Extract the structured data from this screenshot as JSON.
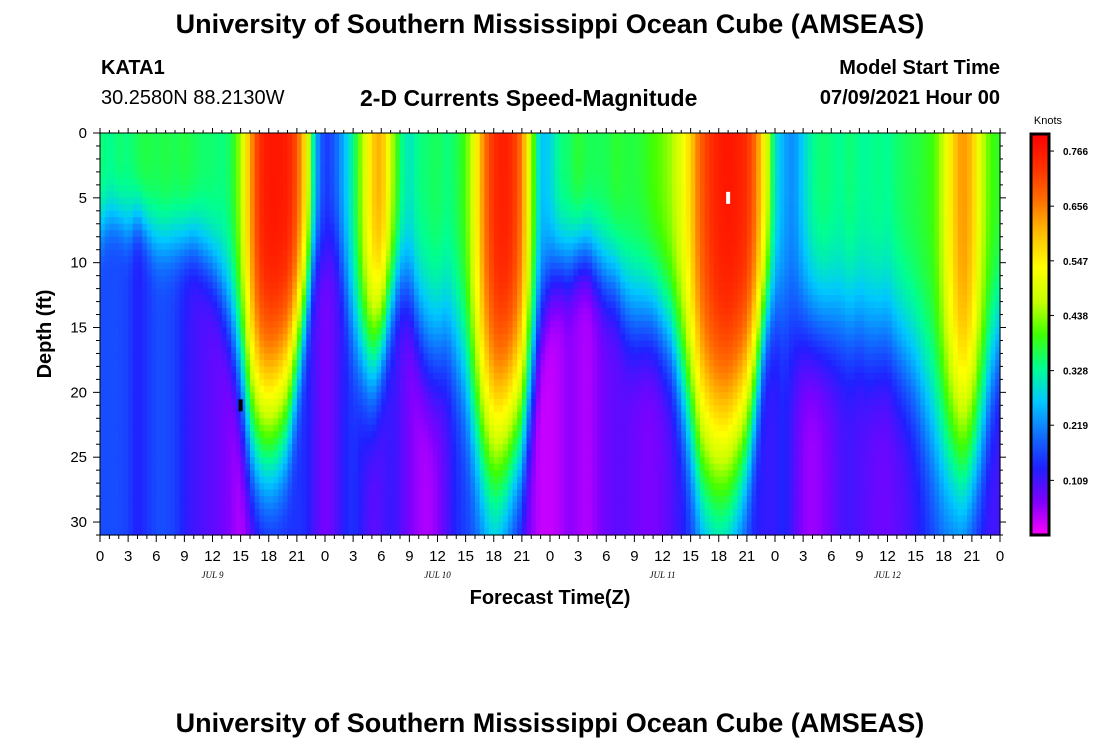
{
  "header": {
    "title": "University of Southern Mississippi Ocean Cube (AMSEAS)",
    "station_id": "KATA1",
    "station_coords": "30.2580N  88.2130W",
    "model_start_label": "Model Start Time",
    "model_start_value": "07/09/2021 Hour 00"
  },
  "footer": {
    "title": "University of Southern Mississippi Ocean Cube (AMSEAS)"
  },
  "colors": {
    "palette": [
      "#ff00ff",
      "#8000ff",
      "#2020ff",
      "#1070ff",
      "#00c8ff",
      "#00ff90",
      "#40ff00",
      "#c8ff00",
      "#ffff00",
      "#ffc000",
      "#ff7000",
      "#ff3000",
      "#ff0000"
    ]
  },
  "chart_data": {
    "type": "heatmap",
    "title": "2-D Currents Speed-Magnitude",
    "xlabel": "Forecast Time(Z)",
    "ylabel": "Depth (ft)",
    "colorbar_unit": "Knots",
    "colorbar_ticks": [
      "0.766",
      "0.656",
      "0.547",
      "0.438",
      "0.328",
      "0.219",
      "0.109"
    ],
    "colorbar_values": [
      0.766,
      0.656,
      0.547,
      0.438,
      0.328,
      0.219,
      0.109
    ],
    "value_range": [
      0.0,
      0.8
    ],
    "x_range_hours": [
      0,
      96
    ],
    "x_tick_labels": [
      "0",
      "3",
      "6",
      "9",
      "12",
      "15",
      "18",
      "21",
      "0",
      "3",
      "6",
      "9",
      "12",
      "15",
      "18",
      "21",
      "0",
      "3",
      "6",
      "9",
      "12",
      "15",
      "18",
      "21",
      "0",
      "3",
      "6",
      "9",
      "12",
      "15",
      "18",
      "21",
      "0"
    ],
    "date_labels": [
      {
        "label": "JUL 9",
        "hour": 12
      },
      {
        "label": "JUL 10",
        "hour": 36
      },
      {
        "label": "JUL 11",
        "hour": 60
      },
      {
        "label": "JUL 12",
        "hour": 84
      }
    ],
    "y_range_ft": [
      0,
      31
    ],
    "y_tick_values": [
      0,
      5,
      10,
      15,
      20,
      25,
      30
    ],
    "y_tick_labels": [
      "0",
      "5",
      "10",
      "15",
      "20",
      "25",
      "30"
    ],
    "markers": [
      {
        "name": "maximum",
        "hour": 67,
        "depth_ft": 5,
        "color": "#ffffff"
      },
      {
        "name": "minimum",
        "hour": 15,
        "depth_ft": 21,
        "color": "#000000"
      }
    ],
    "surface_profile_knots_by_hour": [
      0.35,
      0.33,
      0.35,
      0.34,
      0.36,
      0.37,
      0.36,
      0.37,
      0.36,
      0.37,
      0.36,
      0.35,
      0.35,
      0.34,
      0.36,
      0.45,
      0.62,
      0.74,
      0.77,
      0.77,
      0.76,
      0.7,
      0.54,
      0.25,
      0.15,
      0.18,
      0.25,
      0.33,
      0.46,
      0.58,
      0.62,
      0.48,
      0.35,
      0.3,
      0.34,
      0.35,
      0.36,
      0.34,
      0.36,
      0.4,
      0.52,
      0.66,
      0.74,
      0.76,
      0.74,
      0.66,
      0.45,
      0.26,
      0.28,
      0.34,
      0.35,
      0.38,
      0.36,
      0.36,
      0.36,
      0.38,
      0.37,
      0.37,
      0.38,
      0.4,
      0.42,
      0.45,
      0.5,
      0.58,
      0.68,
      0.73,
      0.76,
      0.77,
      0.76,
      0.74,
      0.66,
      0.52,
      0.3,
      0.24,
      0.22,
      0.28,
      0.33,
      0.35,
      0.34,
      0.33,
      0.35,
      0.33,
      0.33,
      0.34,
      0.33,
      0.35,
      0.36,
      0.37,
      0.38,
      0.4,
      0.48,
      0.58,
      0.64,
      0.6,
      0.48,
      0.4,
      0.38
    ],
    "mixed_layer_depth_ft_by_hour": [
      8,
      7,
      7,
      8,
      7,
      8,
      9,
      9,
      9,
      9,
      9,
      10,
      11,
      13,
      16,
      20,
      24,
      25,
      25,
      24,
      22,
      18,
      14,
      10,
      10,
      9,
      12,
      16,
      18,
      19,
      17,
      14,
      12,
      13,
      16,
      18,
      18,
      17,
      18,
      20,
      23,
      25,
      26,
      26,
      25,
      24,
      20,
      15,
      12,
      11,
      11,
      10,
      10,
      11,
      12,
      12,
      14,
      15,
      15,
      15,
      16,
      17,
      20,
      23,
      26,
      27,
      27,
      27,
      26,
      24,
      20,
      15,
      14,
      15,
      16,
      16,
      16,
      16,
      16,
      16,
      16,
      16,
      17,
      17,
      17,
      18,
      19,
      20,
      22,
      24,
      25,
      26,
      27,
      26,
      24,
      20,
      17
    ],
    "bottom_speed_knots_by_hour": [
      0.17,
      0.17,
      0.17,
      0.16,
      0.13,
      0.15,
      0.17,
      0.17,
      0.16,
      0.13,
      0.11,
      0.1,
      0.09,
      0.08,
      0.06,
      0.04,
      0.05,
      0.08,
      0.1,
      0.12,
      0.14,
      0.15,
      0.14,
      0.1,
      0.07,
      0.09,
      0.13,
      0.15,
      0.12,
      0.09,
      0.1,
      0.12,
      0.1,
      0.07,
      0.05,
      0.04,
      0.06,
      0.1,
      0.14,
      0.16,
      0.18,
      0.2,
      0.22,
      0.18,
      0.14,
      0.1,
      0.06,
      0.03,
      0.03,
      0.04,
      0.06,
      0.05,
      0.04,
      0.06,
      0.08,
      0.09,
      0.09,
      0.08,
      0.07,
      0.07,
      0.08,
      0.1,
      0.12,
      0.15,
      0.18,
      0.2,
      0.22,
      0.2,
      0.17,
      0.15,
      0.13,
      0.12,
      0.12,
      0.14,
      0.1,
      0.06,
      0.05,
      0.06,
      0.08,
      0.1,
      0.11,
      0.1,
      0.09,
      0.08,
      0.08,
      0.09,
      0.1,
      0.12,
      0.14,
      0.16,
      0.18,
      0.17,
      0.15,
      0.13,
      0.12,
      0.11,
      0.11
    ]
  }
}
